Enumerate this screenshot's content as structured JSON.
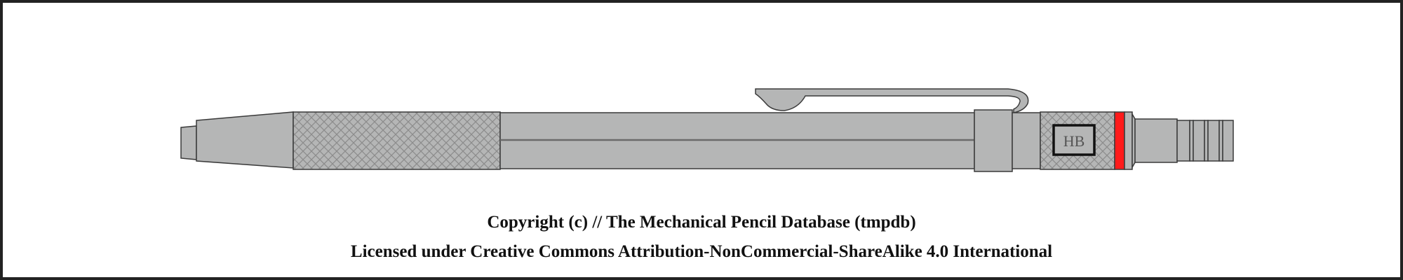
{
  "pencil": {
    "grade_label": "HB",
    "colors": {
      "body": "#b5b6b6",
      "outline": "#3a3a3a",
      "knurl_line": "#8c8c8c",
      "accent_ring": "#ff1a1a",
      "seam": "#6b6b6b"
    }
  },
  "footer": {
    "copyright": "Copyright (c) // The Mechanical Pencil Database (tmpdb)",
    "license": "Licensed under Creative Commons Attribution-NonCommercial-ShareAlike 4.0 International"
  }
}
